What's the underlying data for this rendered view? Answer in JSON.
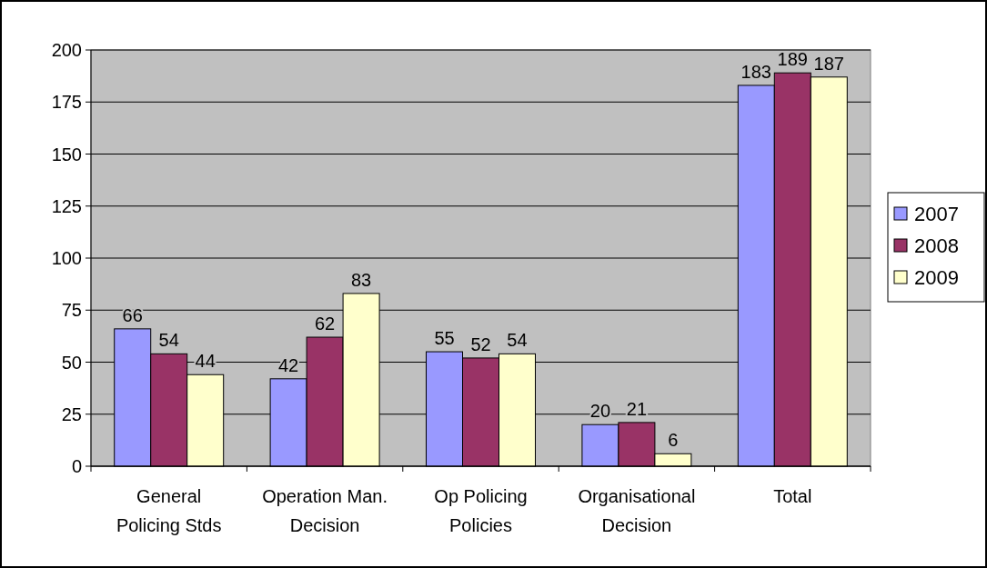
{
  "chart_data": {
    "type": "bar",
    "categories": [
      "General Policing Stds",
      "Operation Man. Decision",
      "Op Policing Policies",
      "Organisational Decision",
      "Total"
    ],
    "series": [
      {
        "name": "2007",
        "color": "#9999ff",
        "values": [
          66,
          42,
          55,
          20,
          183
        ]
      },
      {
        "name": "2008",
        "color": "#993366",
        "values": [
          54,
          62,
          52,
          21,
          189
        ]
      },
      {
        "name": "2009",
        "color": "#ffffcc",
        "values": [
          44,
          83,
          54,
          6,
          187
        ]
      }
    ],
    "ylim": [
      0,
      200
    ],
    "yticks": [
      0,
      25,
      50,
      75,
      100,
      125,
      150,
      175,
      200
    ],
    "grid": "y",
    "legend": "right",
    "data_labels": true
  }
}
